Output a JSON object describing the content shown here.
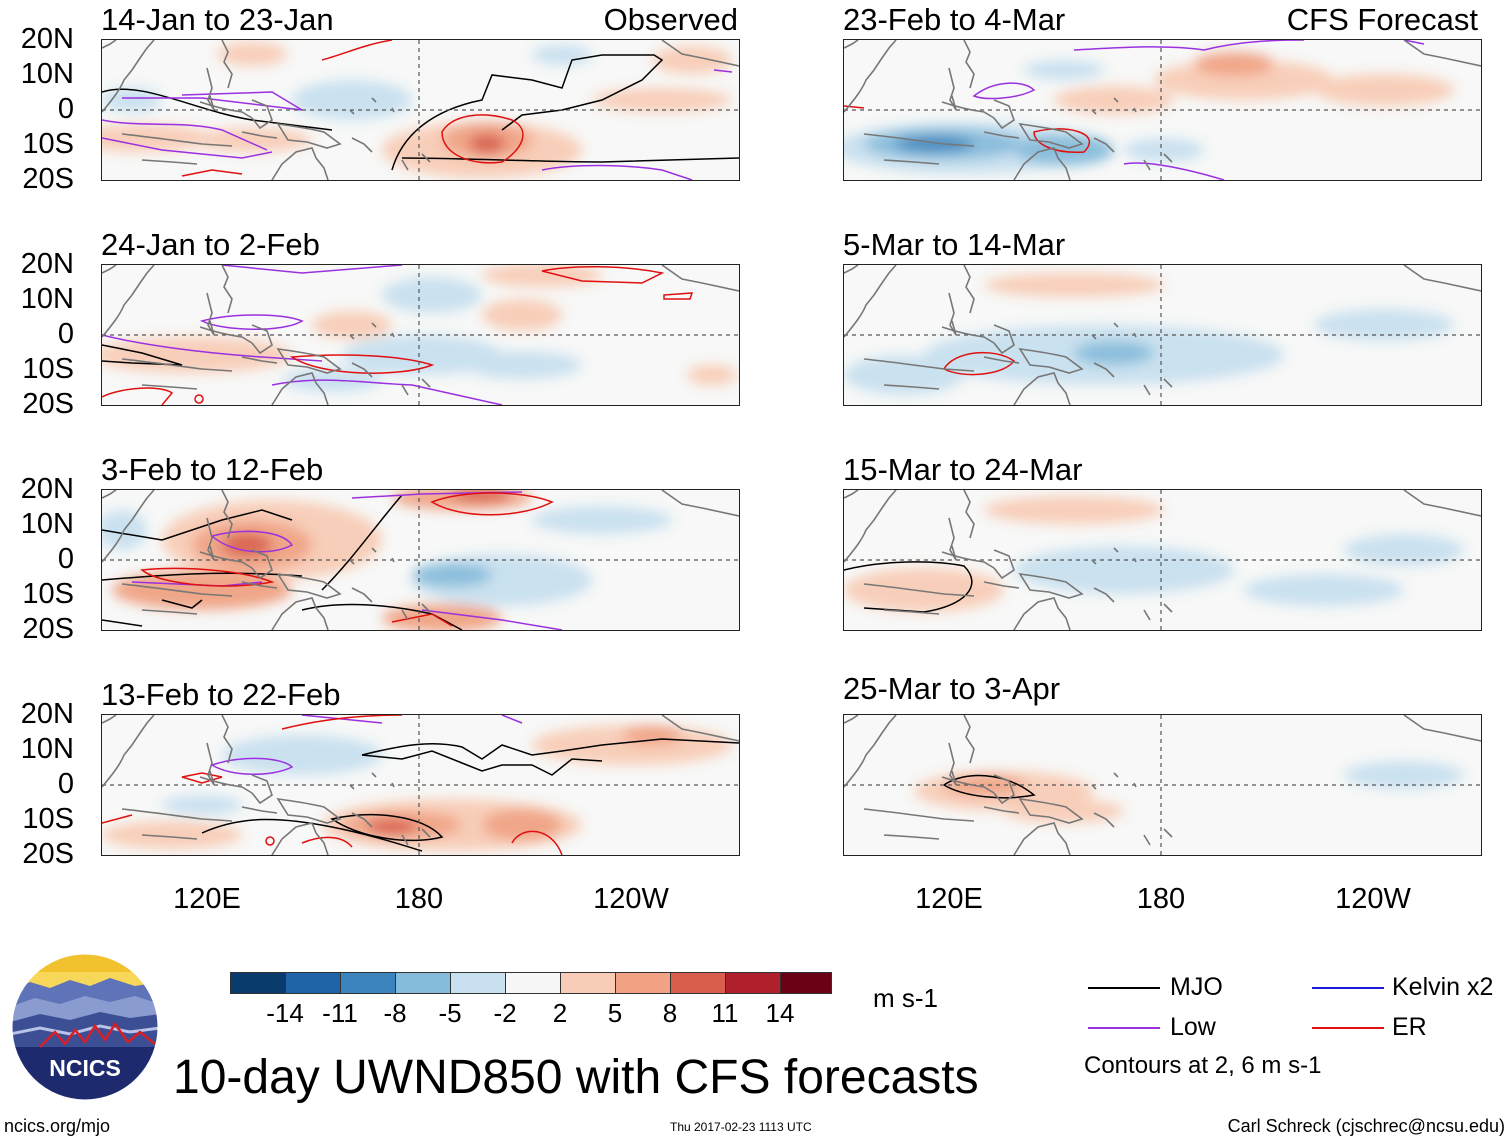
{
  "figure": {
    "title": "10-day UWND850 with CFS forecasts",
    "website": "ncics.org/mjo",
    "timestamp": "Thu 2017-02-23 1113 UTC",
    "author": "Carl Schreck (cjschrec@ncsu.edu)",
    "logo_text": "NCICS"
  },
  "columns": {
    "observed_label": "Observed",
    "forecast_label": "CFS Forecast"
  },
  "panels_observed": [
    {
      "title": "14-Jan to 23-Jan"
    },
    {
      "title": "24-Jan to 2-Feb"
    },
    {
      "title": "3-Feb to 12-Feb"
    },
    {
      "title": "13-Feb to 22-Feb"
    }
  ],
  "panels_forecast": [
    {
      "title": "23-Feb to 4-Mar"
    },
    {
      "title": "5-Mar to 14-Mar"
    },
    {
      "title": "15-Mar to 24-Mar"
    },
    {
      "title": "25-Mar to 3-Apr"
    }
  ],
  "axes": {
    "lat_labels": [
      "20N",
      "10N",
      "0",
      "10S",
      "20S"
    ],
    "lon_labels": [
      "120E",
      "180",
      "120W"
    ]
  },
  "colorbar": {
    "unit": "m s-1",
    "tick_labels": [
      "-14",
      "-11",
      "-8",
      "-5",
      "-2",
      "2",
      "5",
      "8",
      "11",
      "14"
    ],
    "colors": [
      "#083a6b",
      "#1f63a8",
      "#3b84bd",
      "#86bcdb",
      "#c8e0ef",
      "#f7f7f7",
      "#f8ccb6",
      "#f0a283",
      "#d95f4c",
      "#b0202c",
      "#6a0114"
    ]
  },
  "legend": {
    "items": [
      {
        "label": "MJO",
        "color": "#000000"
      },
      {
        "label": "Kelvin x2",
        "color": "#1a1adb"
      },
      {
        "label": "Low",
        "color": "#9b30e0"
      },
      {
        "label": "ER",
        "color": "#e01010"
      }
    ],
    "note": "Contours at 2, 6 m s-1"
  }
}
